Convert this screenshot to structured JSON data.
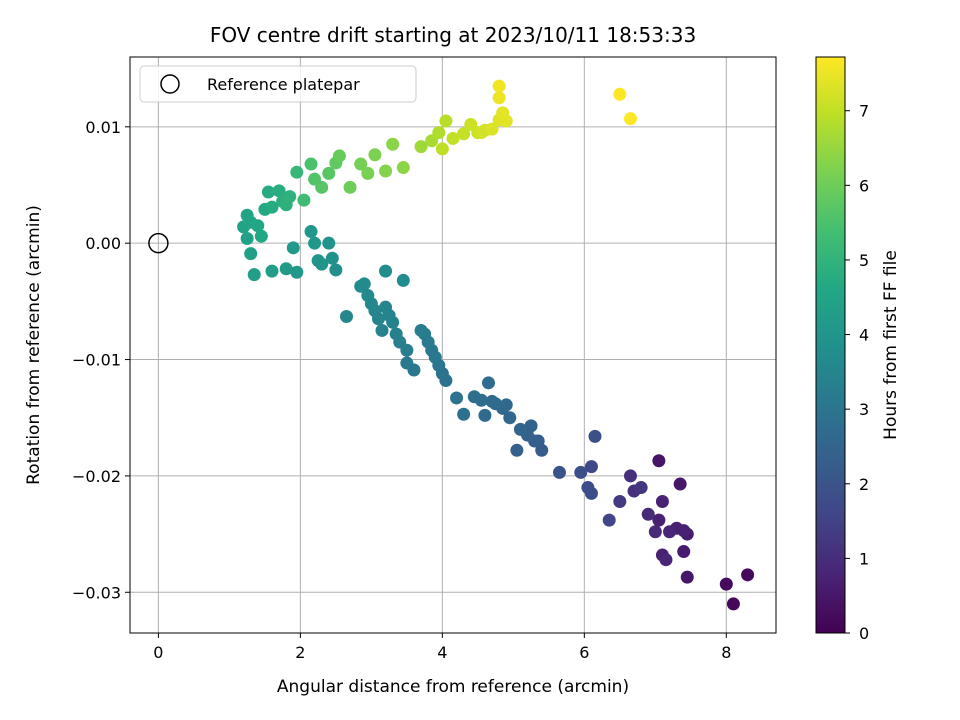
{
  "chart_data": {
    "type": "scatter",
    "title": "FOV centre drift starting at 2023/10/11 18:53:33",
    "xlabel": "Angular distance from reference (arcmin)",
    "ylabel": "Rotation from reference (arcmin)",
    "xlim": [
      -0.4,
      8.7
    ],
    "ylim": [
      -0.0335,
      0.016
    ],
    "xticks": [
      0,
      2,
      4,
      6,
      8
    ],
    "xtick_labels": [
      "0",
      "2",
      "4",
      "6",
      "8"
    ],
    "yticks": [
      0.01,
      0.0,
      -0.01,
      -0.02,
      -0.03
    ],
    "ytick_labels": [
      "0.01",
      "0.00",
      "−0.01",
      "−0.02",
      "−0.03"
    ],
    "grid": true,
    "colormap": "viridis",
    "colorbar": {
      "label": "Hours from first FF file",
      "range": [
        0,
        7.72
      ],
      "ticks": [
        0,
        1,
        2,
        3,
        4,
        5,
        6,
        7
      ],
      "tick_labels": [
        "0",
        "1",
        "2",
        "3",
        "4",
        "5",
        "6",
        "7"
      ]
    },
    "legend": {
      "position": "top-left",
      "entries": [
        "Reference platepar"
      ]
    },
    "reference_point": {
      "x": 0,
      "y": 0,
      "label": "Reference platepar"
    },
    "points": {
      "x": [
        8.0,
        8.1,
        8.3,
        7.45,
        7.4,
        7.45,
        7.4,
        7.3,
        7.2,
        7.15,
        7.1,
        7.05,
        7.0,
        6.9,
        7.35,
        7.05,
        7.1,
        6.8,
        6.7,
        6.65,
        6.5,
        6.35,
        6.1,
        6.05,
        6.1,
        6.15,
        5.95,
        5.65,
        5.4,
        5.3,
        5.35,
        5.2,
        5.25,
        5.1,
        5.05,
        4.95,
        4.85,
        4.9,
        4.75,
        4.7,
        4.65,
        4.55,
        4.6,
        4.45,
        4.3,
        4.2,
        4.05,
        4.0,
        3.95,
        3.9,
        3.85,
        3.8,
        3.75,
        3.7,
        3.6,
        3.5,
        3.5,
        3.4,
        3.35,
        3.3,
        3.25,
        3.2,
        3.15,
        3.1,
        3.05,
        3.0,
        2.95,
        2.9,
        3.2,
        3.45,
        2.85,
        2.65,
        2.5,
        2.45,
        2.4,
        2.3,
        2.25,
        2.2,
        2.15,
        1.95,
        1.9,
        1.8,
        1.6,
        1.35,
        1.3,
        1.25,
        1.2,
        1.25,
        1.3,
        1.4,
        1.45,
        1.5,
        1.55,
        1.6,
        1.7,
        1.75,
        1.8,
        1.85,
        1.95,
        2.05,
        2.15,
        2.2,
        2.3,
        2.4,
        2.5,
        2.55,
        2.7,
        2.85,
        2.95,
        3.05,
        3.2,
        3.3,
        3.45,
        3.7,
        3.85,
        3.95,
        4.05,
        4.15,
        4.3,
        4.4,
        4.55,
        4.7,
        4.8,
        4.9,
        4.0,
        4.5,
        4.6,
        4.85,
        4.8,
        4.8,
        6.5,
        6.65
      ],
      "y": [
        -0.0293,
        -0.031,
        -0.0285,
        -0.0287,
        -0.0265,
        -0.025,
        -0.0247,
        -0.0245,
        -0.0248,
        -0.0272,
        -0.0222,
        -0.0238,
        -0.0248,
        -0.0233,
        -0.0207,
        -0.0187,
        -0.0268,
        -0.021,
        -0.0213,
        -0.02,
        -0.0222,
        -0.0238,
        -0.0192,
        -0.021,
        -0.0215,
        -0.0166,
        -0.0197,
        -0.0197,
        -0.0178,
        -0.017,
        -0.017,
        -0.0165,
        -0.0157,
        -0.016,
        -0.0178,
        -0.015,
        -0.0142,
        -0.0139,
        -0.0138,
        -0.0136,
        -0.012,
        -0.0135,
        -0.0148,
        -0.0132,
        -0.0147,
        -0.0133,
        -0.0118,
        -0.0112,
        -0.0105,
        -0.0098,
        -0.0092,
        -0.0085,
        -0.0078,
        -0.0075,
        -0.0109,
        -0.0103,
        -0.0092,
        -0.0085,
        -0.0078,
        -0.0068,
        -0.0062,
        -0.0055,
        -0.0075,
        -0.0065,
        -0.0058,
        -0.0052,
        -0.0045,
        -0.0035,
        -0.0024,
        -0.0032,
        -0.0037,
        -0.0063,
        -0.0023,
        -0.0013,
        0.0,
        -0.0018,
        -0.0015,
        0.0,
        0.001,
        -0.0025,
        -0.0004,
        -0.0022,
        -0.0024,
        -0.0027,
        -0.0009,
        0.0004,
        0.0014,
        0.0024,
        0.0018,
        0.0015,
        0.0006,
        0.0029,
        0.0044,
        0.0031,
        0.0045,
        0.0036,
        0.0033,
        0.004,
        0.0061,
        0.0037,
        0.0068,
        0.0055,
        0.0048,
        0.006,
        0.0069,
        0.0075,
        0.0048,
        0.0068,
        0.006,
        0.0076,
        0.0062,
        0.0085,
        0.0065,
        0.0083,
        0.0088,
        0.0095,
        0.0105,
        0.009,
        0.0094,
        0.0102,
        0.0095,
        0.0098,
        0.0106,
        0.0105,
        0.0081,
        0.0095,
        0.0097,
        0.0112,
        0.0125,
        0.0135,
        0.0128,
        0.0107
      ],
      "hours": [
        0.2,
        0.15,
        0.2,
        0.5,
        0.6,
        0.6,
        0.7,
        0.7,
        0.8,
        0.8,
        0.75,
        0.7,
        0.9,
        0.95,
        0.5,
        0.45,
        0.7,
        1.2,
        1.1,
        1.05,
        1.3,
        1.6,
        1.7,
        1.8,
        1.8,
        1.85,
        1.9,
        2.0,
        2.2,
        2.35,
        2.3,
        2.4,
        2.45,
        2.5,
        2.35,
        2.55,
        2.6,
        2.6,
        2.65,
        2.7,
        2.75,
        2.75,
        2.7,
        2.8,
        2.85,
        2.9,
        2.9,
        2.95,
        3.0,
        3.05,
        3.1,
        3.15,
        3.2,
        3.25,
        3.1,
        3.15,
        3.25,
        3.3,
        3.35,
        3.4,
        3.45,
        3.5,
        3.4,
        3.45,
        3.5,
        3.55,
        3.6,
        3.65,
        3.7,
        3.7,
        3.65,
        3.55,
        3.8,
        3.85,
        3.9,
        3.95,
        4.0,
        4.05,
        4.1,
        4.1,
        4.15,
        4.2,
        4.25,
        4.3,
        4.35,
        4.4,
        4.45,
        4.5,
        4.5,
        4.55,
        4.6,
        4.65,
        4.7,
        4.75,
        4.8,
        4.85,
        4.9,
        4.95,
        5.1,
        5.3,
        5.5,
        5.6,
        5.65,
        5.7,
        5.8,
        5.9,
        6.0,
        6.1,
        6.15,
        6.2,
        6.3,
        6.35,
        6.4,
        6.6,
        6.7,
        6.8,
        6.9,
        7.0,
        7.05,
        7.1,
        7.2,
        7.3,
        7.35,
        7.4,
        6.95,
        7.1,
        7.2,
        7.4,
        7.5,
        7.55,
        7.72,
        7.7
      ]
    }
  }
}
